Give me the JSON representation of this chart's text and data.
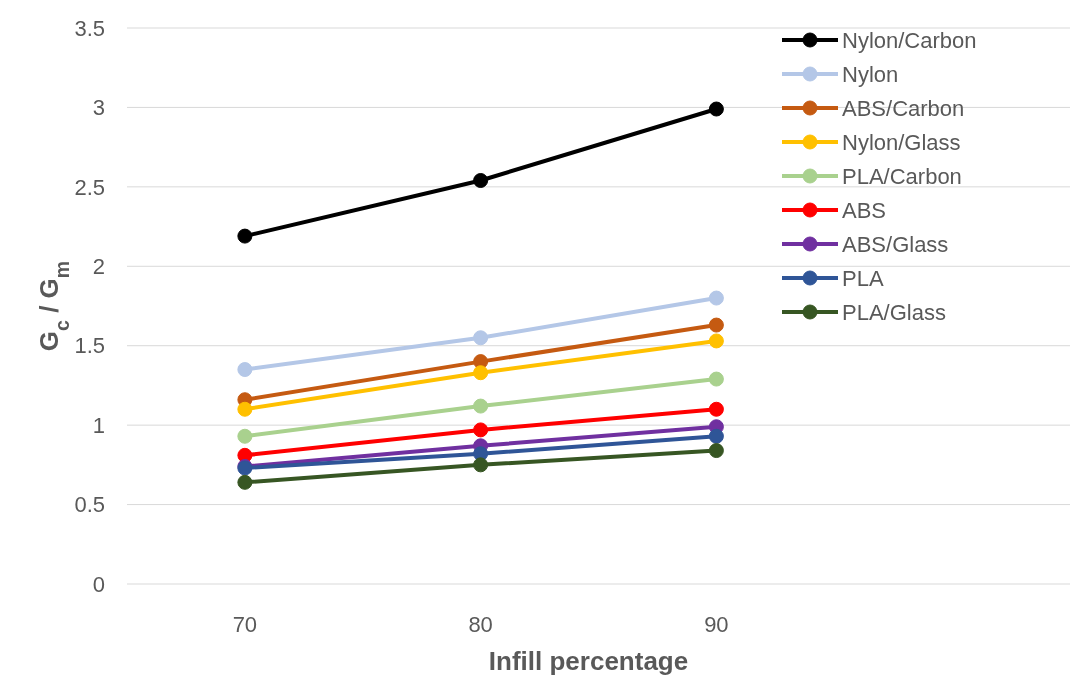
{
  "chart_data": {
    "type": "line",
    "xlabel": "Infill percentage",
    "ylabel": "G$_{c}$ / G$_{m}$",
    "categories": [
      "70",
      "80",
      "90",
      null
    ],
    "ylim": [
      0,
      3.5
    ],
    "yticks": [
      0,
      0.5,
      1,
      1.5,
      2,
      2.5,
      3,
      3.5
    ],
    "grid": "y",
    "legend": "top right",
    "marker": "circle",
    "line_style": "solid",
    "series": [
      {
        "name": "Nylon/Carbon",
        "color": "#000000",
        "values": [
          2.19,
          2.54,
          2.99,
          null
        ]
      },
      {
        "name": "Nylon",
        "color": "#b4c7e7",
        "values": [
          1.35,
          1.55,
          1.8,
          null
        ]
      },
      {
        "name": "ABS/Carbon",
        "color": "#c55a11",
        "values": [
          1.16,
          1.4,
          1.63,
          null
        ]
      },
      {
        "name": "Nylon/Glass",
        "color": "#ffc000",
        "values": [
          1.1,
          1.33,
          1.53,
          null
        ]
      },
      {
        "name": "PLA/Carbon",
        "color": "#a9d18e",
        "values": [
          0.93,
          1.12,
          1.29,
          null
        ]
      },
      {
        "name": "ABS",
        "color": "#ff0000",
        "values": [
          0.81,
          0.97,
          1.1,
          null
        ]
      },
      {
        "name": "ABS/Glass",
        "color": "#7030a0",
        "values": [
          0.74,
          0.87,
          0.99,
          null
        ]
      },
      {
        "name": "PLA",
        "color": "#2f5597",
        "values": [
          0.73,
          0.82,
          0.93,
          null
        ]
      },
      {
        "name": "PLA/Glass",
        "color": "#375623",
        "values": [
          0.64,
          0.75,
          0.84,
          null
        ]
      }
    ]
  }
}
